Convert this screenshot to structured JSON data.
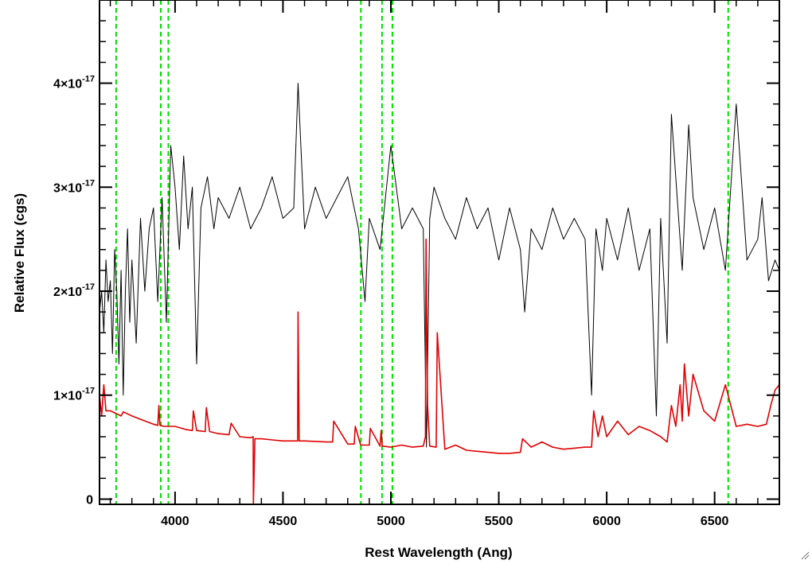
{
  "chart_data": {
    "type": "line",
    "title": "",
    "xlabel": "Rest Wavelength (Ang)",
    "ylabel": "Relative Flux (cgs)",
    "xlim": [
      3650,
      6800
    ],
    "ylim": [
      -5e-19,
      4.8e-17
    ],
    "x_ticks": [
      4000,
      4500,
      5000,
      5500,
      6000,
      6500
    ],
    "y_ticks": [
      {
        "value": 0,
        "mantissa": "0",
        "exponent": ""
      },
      {
        "value": 1e-17,
        "mantissa": "1×10",
        "exponent": "-17"
      },
      {
        "value": 2e-17,
        "mantissa": "2×10",
        "exponent": "-17"
      },
      {
        "value": 3e-17,
        "mantissa": "3×10",
        "exponent": "-17"
      },
      {
        "value": 4e-17,
        "mantissa": "4×10",
        "exponent": "-17"
      }
    ],
    "grid": false,
    "legend": "none",
    "line_markers": {
      "color": "#00dd00",
      "style": "dashed",
      "x": [
        3727,
        3934,
        3969,
        4861,
        4959,
        5007,
        6563
      ]
    },
    "series": [
      {
        "color": "#000000",
        "x": [
          3650,
          3660,
          3670,
          3680,
          3690,
          3700,
          3710,
          3720,
          3730,
          3740,
          3750,
          3760,
          3770,
          3780,
          3790,
          3800,
          3820,
          3840,
          3860,
          3880,
          3900,
          3920,
          3940,
          3960,
          3980,
          4000,
          4020,
          4040,
          4060,
          4080,
          4100,
          4120,
          4150,
          4180,
          4200,
          4250,
          4300,
          4350,
          4400,
          4450,
          4500,
          4550,
          4570,
          4600,
          4650,
          4700,
          4750,
          4800,
          4850,
          4880,
          4900,
          4950,
          5000,
          5050,
          5100,
          5150,
          5165,
          5180,
          5200,
          5250,
          5300,
          5350,
          5400,
          5450,
          5500,
          5550,
          5600,
          5620,
          5650,
          5700,
          5750,
          5800,
          5850,
          5900,
          5930,
          5950,
          5980,
          6000,
          6050,
          6100,
          6150,
          6200,
          6230,
          6250,
          6280,
          6300,
          6350,
          6380,
          6400,
          6450,
          6500,
          6550,
          6600,
          6650,
          6700,
          6720,
          6750,
          6780,
          6800
        ],
        "y": [
          1.8e-17,
          2e-17,
          1.6e-17,
          2.3e-17,
          1.9e-17,
          2.1e-17,
          1.4e-17,
          2.4e-17,
          2e-17,
          1.3e-17,
          2.2e-17,
          1e-17,
          2e-17,
          2.6e-17,
          1.7e-17,
          2.3e-17,
          1.5e-17,
          2.7e-17,
          2e-17,
          2.6e-17,
          2.8e-17,
          1.9e-17,
          2.9e-17,
          1.7e-17,
          3.4e-17,
          3e-17,
          2.4e-17,
          3.3e-17,
          2.6e-17,
          3e-17,
          1.3e-17,
          2.8e-17,
          3.1e-17,
          2.6e-17,
          2.9e-17,
          2.7e-17,
          3e-17,
          2.6e-17,
          2.8e-17,
          3.1e-17,
          2.7e-17,
          2.8e-17,
          4e-17,
          2.6e-17,
          3e-17,
          2.7e-17,
          2.9e-17,
          3.1e-17,
          2.6e-17,
          1.9e-17,
          2.7e-17,
          2.4e-17,
          3.4e-17,
          2.6e-17,
          2.8e-17,
          2.6e-17,
          5e-18,
          2.7e-17,
          3e-17,
          2.7e-17,
          2.5e-17,
          2.9e-17,
          2.6e-17,
          2.8e-17,
          2.3e-17,
          2.8e-17,
          2.4e-17,
          1.8e-17,
          2.6e-17,
          2.4e-17,
          2.8e-17,
          2.5e-17,
          2.7e-17,
          2.5e-17,
          1e-17,
          2.6e-17,
          2.2e-17,
          2.7e-17,
          2.3e-17,
          2.8e-17,
          2.2e-17,
          2.6e-17,
          8e-18,
          2.7e-17,
          1.5e-17,
          3.7e-17,
          2.2e-17,
          3.6e-17,
          2.9e-17,
          2.4e-17,
          2.8e-17,
          2.2e-17,
          3.8e-17,
          2.3e-17,
          2.5e-17,
          2.9e-17,
          2.1e-17,
          2.3e-17,
          2.2e-17
        ]
      },
      {
        "color": "#e00000",
        "x": [
          3650,
          3660,
          3670,
          3680,
          3700,
          3750,
          3760,
          3800,
          3850,
          3900,
          3920,
          3925,
          3930,
          3950,
          4000,
          4050,
          4080,
          4085,
          4100,
          4140,
          4145,
          4160,
          4200,
          4250,
          4260,
          4300,
          4350,
          4362,
          4363,
          4370,
          4400,
          4450,
          4500,
          4550,
          4568,
          4570,
          4575,
          4600,
          4700,
          4730,
          4735,
          4800,
          4830,
          4835,
          4860,
          4900,
          4905,
          4950,
          4955,
          4960,
          5000,
          5050,
          5100,
          5150,
          5160,
          5163,
          5170,
          5180,
          5210,
          5215,
          5250,
          5300,
          5350,
          5400,
          5450,
          5500,
          5550,
          5600,
          5610,
          5650,
          5700,
          5750,
          5800,
          5850,
          5900,
          5930,
          5940,
          5960,
          5980,
          6000,
          6050,
          6100,
          6150,
          6200,
          6250,
          6280,
          6300,
          6320,
          6340,
          6350,
          6360,
          6380,
          6400,
          6450,
          6500,
          6550,
          6600,
          6650,
          6700,
          6740,
          6760,
          6780,
          6800
        ],
        "y": [
          1e-17,
          8e-18,
          1.1e-17,
          8.5e-18,
          8.5e-18,
          8e-18,
          8.4e-18,
          8e-18,
          7.6e-18,
          7.2e-18,
          7.1e-18,
          9e-18,
          7.1e-18,
          7e-18,
          7e-18,
          6.7e-18,
          6.6e-18,
          8.5e-18,
          6.6e-18,
          6.5e-18,
          8.8e-18,
          6.5e-18,
          6.3e-18,
          6.2e-18,
          7.3e-18,
          6e-18,
          5.9e-18,
          6e-18,
          -5e-19,
          5.8e-18,
          5.8e-18,
          5.7e-18,
          5.6e-18,
          5.6e-18,
          5.6e-18,
          1.8e-17,
          5.6e-18,
          5.6e-18,
          5.5e-18,
          5.5e-18,
          7.5e-18,
          5.3e-18,
          5.3e-18,
          7e-18,
          5.2e-18,
          5.2e-18,
          6.8e-18,
          5.1e-18,
          6.6e-18,
          5.1e-18,
          5e-18,
          5.2e-18,
          5e-18,
          5.1e-18,
          6e-18,
          2.5e-17,
          9e-18,
          5.1e-18,
          5e-18,
          1.6e-17,
          4.8e-18,
          5.2e-18,
          4.7e-18,
          4.6e-18,
          4.5e-18,
          4.4e-18,
          4.4e-18,
          4.5e-18,
          5.8e-18,
          5e-18,
          5.5e-18,
          5e-18,
          4.8e-18,
          4.9e-18,
          5e-18,
          5e-18,
          8.5e-18,
          6e-18,
          8e-18,
          6e-18,
          7.5e-18,
          6.2e-18,
          7e-18,
          6.6e-18,
          6e-18,
          5.5e-18,
          9e-18,
          7e-18,
          1.1e-17,
          7.5e-18,
          1.3e-17,
          8e-18,
          1.2e-17,
          8.5e-18,
          7.5e-18,
          1.1e-17,
          7e-18,
          7.2e-18,
          7e-18,
          7.2e-18,
          9e-18,
          1.05e-17,
          1.1e-17
        ]
      }
    ]
  }
}
